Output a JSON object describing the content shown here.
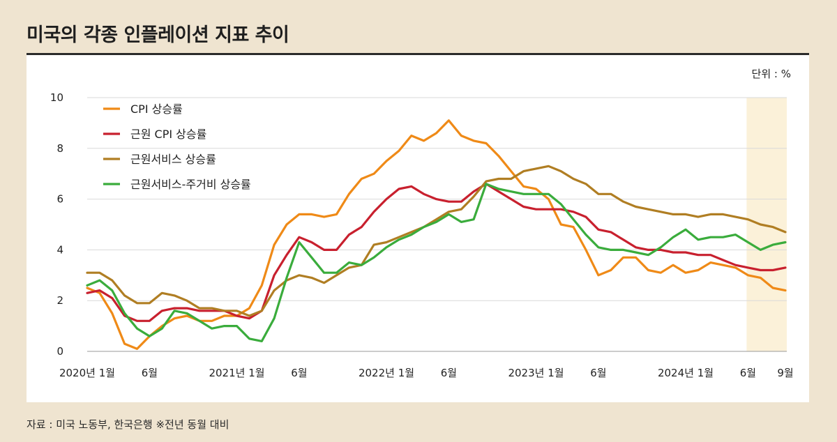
{
  "title": "미국의 각종 인플레이션 지표 추이",
  "source": "자료 : 미국 노동부, 한국은행 ※전년 동월 대비",
  "chart_data": {
    "type": "line",
    "unit": "단위 : %",
    "ylim": [
      0,
      10
    ],
    "yticks": [
      0,
      2,
      4,
      6,
      8,
      10
    ],
    "x_count": 57,
    "x_ticks": [
      {
        "index": 0,
        "label": "2020년 1월"
      },
      {
        "index": 5,
        "label": "6월"
      },
      {
        "index": 12,
        "label": "2021년 1월"
      },
      {
        "index": 17,
        "label": "6월"
      },
      {
        "index": 24,
        "label": "2022년 1월"
      },
      {
        "index": 29,
        "label": "6월"
      },
      {
        "index": 36,
        "label": "2023년 1월"
      },
      {
        "index": 41,
        "label": "6월"
      },
      {
        "index": 48,
        "label": "2024년 1월"
      },
      {
        "index": 53,
        "label": "6월"
      },
      {
        "index": 56,
        "label": "9월"
      }
    ],
    "highlight_range": [
      53,
      56
    ],
    "legend_position": "top-left",
    "series": [
      {
        "name": "CPI 상승률",
        "color": "#ef8a17",
        "values": [
          2.5,
          2.3,
          1.5,
          0.3,
          0.1,
          0.6,
          1.0,
          1.3,
          1.4,
          1.2,
          1.2,
          1.4,
          1.4,
          1.7,
          2.6,
          4.2,
          5.0,
          5.4,
          5.4,
          5.3,
          5.4,
          6.2,
          6.8,
          7.0,
          7.5,
          7.9,
          8.5,
          8.3,
          8.6,
          9.1,
          8.5,
          8.3,
          8.2,
          7.7,
          7.1,
          6.5,
          6.4,
          6.0,
          5.0,
          4.9,
          4.0,
          3.0,
          3.2,
          3.7,
          3.7,
          3.2,
          3.1,
          3.4,
          3.1,
          3.2,
          3.5,
          3.4,
          3.3,
          3.0,
          2.9,
          2.5,
          2.4
        ]
      },
      {
        "name": "근원 CPI 상승률",
        "color": "#c8202e",
        "values": [
          2.3,
          2.4,
          2.1,
          1.4,
          1.2,
          1.2,
          1.6,
          1.7,
          1.7,
          1.6,
          1.6,
          1.6,
          1.4,
          1.3,
          1.6,
          3.0,
          3.8,
          4.5,
          4.3,
          4.0,
          4.0,
          4.6,
          4.9,
          5.5,
          6.0,
          6.4,
          6.5,
          6.2,
          6.0,
          5.9,
          5.9,
          6.3,
          6.6,
          6.3,
          6.0,
          5.7,
          5.6,
          5.6,
          5.6,
          5.5,
          5.3,
          4.8,
          4.7,
          4.4,
          4.1,
          4.0,
          4.0,
          3.9,
          3.9,
          3.8,
          3.8,
          3.6,
          3.4,
          3.3,
          3.2,
          3.2,
          3.3
        ]
      },
      {
        "name": "근원서비스 상승률",
        "color": "#b07e23",
        "values": [
          3.1,
          3.1,
          2.8,
          2.2,
          1.9,
          1.9,
          2.3,
          2.2,
          2.0,
          1.7,
          1.7,
          1.6,
          1.6,
          1.4,
          1.6,
          2.4,
          2.8,
          3.0,
          2.9,
          2.7,
          3.0,
          3.3,
          3.4,
          4.2,
          4.3,
          4.5,
          4.7,
          4.9,
          5.2,
          5.5,
          5.6,
          6.1,
          6.7,
          6.8,
          6.8,
          7.1,
          7.2,
          7.3,
          7.1,
          6.8,
          6.6,
          6.2,
          6.2,
          5.9,
          5.7,
          5.6,
          5.5,
          5.4,
          5.4,
          5.3,
          5.4,
          5.4,
          5.3,
          5.2,
          5.0,
          4.9,
          4.7
        ]
      },
      {
        "name": "근원서비스-주거비 상승률",
        "color": "#3aac3c",
        "values": [
          2.6,
          2.8,
          2.4,
          1.5,
          0.9,
          0.6,
          0.9,
          1.6,
          1.5,
          1.2,
          0.9,
          1.0,
          1.0,
          0.5,
          0.4,
          1.3,
          2.9,
          4.3,
          3.7,
          3.1,
          3.1,
          3.5,
          3.4,
          3.7,
          4.1,
          4.4,
          4.6,
          4.9,
          5.1,
          5.4,
          5.1,
          5.2,
          6.6,
          6.4,
          6.3,
          6.2,
          6.2,
          6.2,
          5.8,
          5.2,
          4.6,
          4.1,
          4.0,
          4.0,
          3.9,
          3.8,
          4.1,
          4.5,
          4.8,
          4.4,
          4.5,
          4.5,
          4.6,
          4.3,
          4.0,
          4.2,
          4.3
        ]
      }
    ]
  }
}
